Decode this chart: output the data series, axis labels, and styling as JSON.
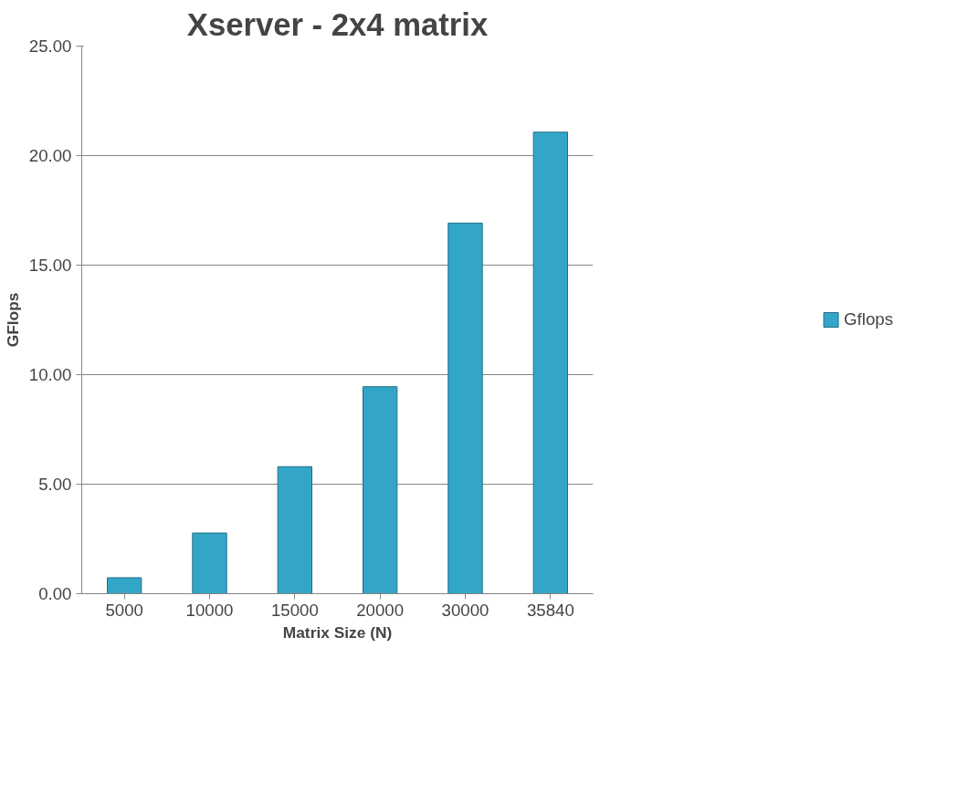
{
  "chart_data": {
    "type": "bar",
    "title": "Xserver - 2x4 matrix",
    "xlabel": "Matrix Size (N)",
    "ylabel": "GFlops",
    "categories": [
      "5000",
      "10000",
      "15000",
      "20000",
      "30000",
      "35840"
    ],
    "series": [
      {
        "name": "Gflops",
        "color": "#33a6c8",
        "values": [
          0.73,
          2.77,
          5.8,
          9.45,
          16.92,
          21.07
        ]
      }
    ],
    "ylim": [
      0,
      25
    ],
    "yticks": [
      {
        "value": 0,
        "label": "0.00"
      },
      {
        "value": 5,
        "label": "5.00"
      },
      {
        "value": 10,
        "label": "10.00"
      },
      {
        "value": 15,
        "label": "15.00"
      },
      {
        "value": 20,
        "label": "20.00"
      },
      {
        "value": 25,
        "label": "25.00"
      }
    ],
    "grid": "y",
    "legend": "right"
  }
}
